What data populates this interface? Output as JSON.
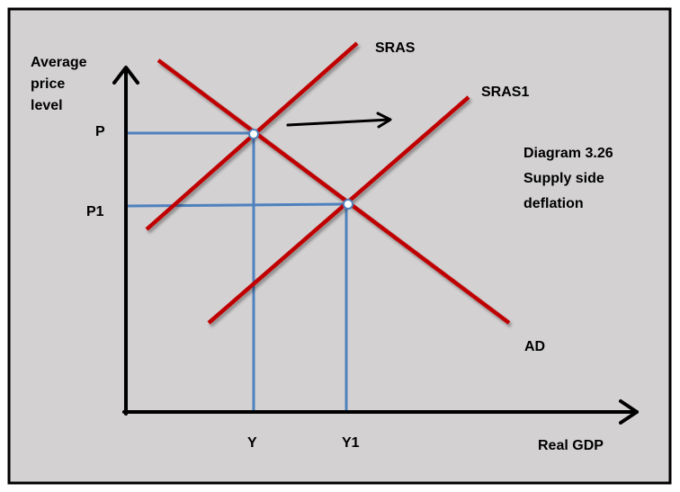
{
  "diagram": {
    "y_axis_label": [
      "Average",
      "price",
      "level"
    ],
    "x_axis_label": "Real GDP",
    "price_labels": {
      "p": "P",
      "p1": "P1"
    },
    "output_labels": {
      "y": "Y",
      "y1": "Y1"
    },
    "curves": {
      "sras": "SRAS",
      "sras1": "SRAS1",
      "ad": "AD"
    },
    "caption": [
      "Diagram 3.26",
      "Supply side",
      "deflation"
    ]
  },
  "colors": {
    "background": "#d3d1d2",
    "border": "#000000",
    "curve": "#c00000",
    "guide": "#4f81bd",
    "axis": "#000000"
  }
}
